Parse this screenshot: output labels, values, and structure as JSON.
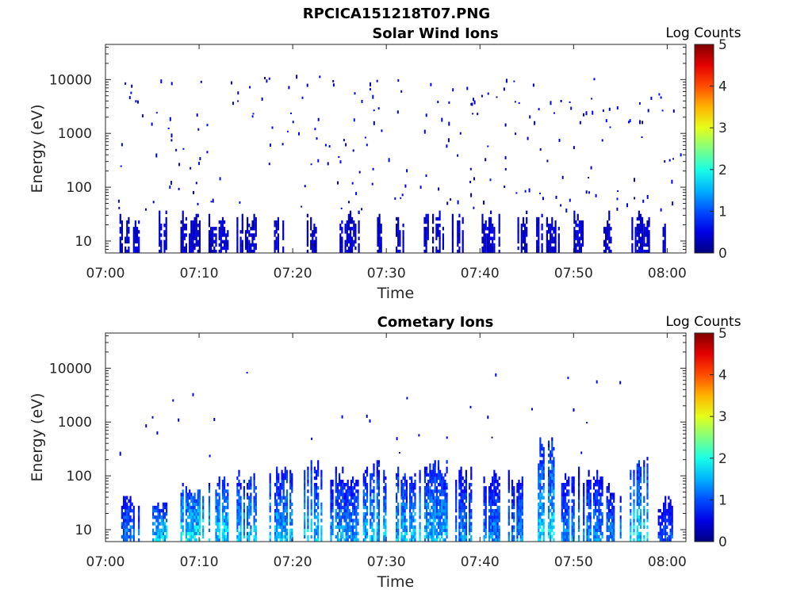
{
  "figure": {
    "title": "RPCICA151218T07.PNG"
  },
  "chart_data": [
    {
      "type": "heatmap",
      "title": "Solar Wind Ions",
      "xlabel": "Time",
      "ylabel": "Energy (eV)",
      "colorbar_label": "Log Counts",
      "colorbar_ticks": [
        "0",
        "1",
        "2",
        "3",
        "4",
        "5"
      ],
      "x_ticks": [
        "07:00",
        "07:10",
        "07:20",
        "07:30",
        "07:40",
        "07:50",
        "08:00"
      ],
      "y_ticks": [
        "10",
        "100",
        "1000",
        "10000"
      ],
      "y_scale": "log",
      "y_range": [
        6,
        45000
      ],
      "x_range": [
        "07:00",
        "08:02"
      ],
      "colormap": "jet",
      "colorbar_range": [
        0,
        5
      ],
      "dominant_level": "0 to 0.5 (dark blue), sparse counts",
      "low_energy_bursts": [
        {
          "start": "07:01.5",
          "end": "07:03.5",
          "top_eV": 35
        },
        {
          "start": "07:05.5",
          "end": "07:06.5",
          "top_eV": 35
        },
        {
          "start": "07:08",
          "end": "07:10",
          "top_eV": 35
        },
        {
          "start": "07:11",
          "end": "07:13",
          "top_eV": 35
        },
        {
          "start": "07:14",
          "end": "07:16",
          "top_eV": 35
        },
        {
          "start": "07:18",
          "end": "07:19",
          "top_eV": 35
        },
        {
          "start": "07:21.5",
          "end": "07:22.5",
          "top_eV": 35
        },
        {
          "start": "07:25",
          "end": "07:27",
          "top_eV": 35
        },
        {
          "start": "07:29",
          "end": "07:29.5",
          "top_eV": 35
        },
        {
          "start": "07:31",
          "end": "07:32",
          "top_eV": 35
        },
        {
          "start": "07:34",
          "end": "07:36",
          "top_eV": 35
        },
        {
          "start": "07:37",
          "end": "07:38.5",
          "top_eV": 35
        },
        {
          "start": "07:40",
          "end": "07:42",
          "top_eV": 35
        },
        {
          "start": "07:44",
          "end": "07:45",
          "top_eV": 35
        },
        {
          "start": "07:46",
          "end": "07:48.5",
          "top_eV": 35
        },
        {
          "start": "07:50",
          "end": "07:51",
          "top_eV": 35
        },
        {
          "start": "07:53",
          "end": "07:54",
          "top_eV": 35
        },
        {
          "start": "07:56",
          "end": "07:58",
          "top_eV": 35
        },
        {
          "start": "07:59.5",
          "end": "08:00.5",
          "top_eV": 35
        }
      ]
    },
    {
      "type": "heatmap",
      "title": "Cometary Ions",
      "xlabel": "Time",
      "ylabel": "Energy (eV)",
      "colorbar_label": "Log Counts",
      "colorbar_ticks": [
        "0",
        "1",
        "2",
        "3",
        "4",
        "5"
      ],
      "x_ticks": [
        "07:00",
        "07:10",
        "07:20",
        "07:30",
        "07:40",
        "07:50",
        "08:00"
      ],
      "y_ticks": [
        "10",
        "100",
        "1000",
        "10000"
      ],
      "y_scale": "log",
      "y_range": [
        6,
        45000
      ],
      "x_range": [
        "07:00",
        "08:02"
      ],
      "colormap": "jet",
      "colorbar_range": [
        0,
        5
      ],
      "dominant_level": "0.5 to 2 (blue to cyan) below 60 eV",
      "low_energy_bursts": [
        {
          "start": "07:01.5",
          "end": "07:03.5",
          "top_eV": 50,
          "peak_log": 1.5
        },
        {
          "start": "07:05",
          "end": "07:06.5",
          "top_eV": 40,
          "peak_log": 2
        },
        {
          "start": "07:08",
          "end": "07:10.5",
          "top_eV": 80,
          "peak_log": 2.2
        },
        {
          "start": "07:11",
          "end": "07:13",
          "top_eV": 100,
          "peak_log": 2
        },
        {
          "start": "07:14",
          "end": "07:16",
          "top_eV": 120,
          "peak_log": 1.8
        },
        {
          "start": "07:17.5",
          "end": "07:20",
          "top_eV": 150,
          "peak_log": 1.8
        },
        {
          "start": "07:21",
          "end": "07:23",
          "top_eV": 200,
          "peak_log": 1.8
        },
        {
          "start": "07:24",
          "end": "07:27",
          "top_eV": 150,
          "peak_log": 1.6
        },
        {
          "start": "07:27.5",
          "end": "07:30",
          "top_eV": 200,
          "peak_log": 1.8
        },
        {
          "start": "07:31",
          "end": "07:33",
          "top_eV": 150,
          "peak_log": 1.8
        },
        {
          "start": "07:33.5",
          "end": "07:36.5",
          "top_eV": 200,
          "peak_log": 1.8
        },
        {
          "start": "07:37",
          "end": "07:39",
          "top_eV": 150,
          "peak_log": 1.5
        },
        {
          "start": "07:40",
          "end": "07:42",
          "top_eV": 120,
          "peak_log": 1.5
        },
        {
          "start": "07:43",
          "end": "07:45",
          "top_eV": 120,
          "peak_log": 1.5
        },
        {
          "start": "07:46",
          "end": "07:48",
          "top_eV": 500,
          "peak_log": 2
        },
        {
          "start": "07:48.5",
          "end": "07:50.5",
          "top_eV": 150,
          "peak_log": 1.5
        },
        {
          "start": "07:51",
          "end": "07:53",
          "top_eV": 150,
          "peak_log": 1.5
        },
        {
          "start": "07:53.5",
          "end": "07:55",
          "top_eV": 100,
          "peak_log": 1.5
        },
        {
          "start": "07:56",
          "end": "07:58",
          "top_eV": 300,
          "peak_log": 2
        },
        {
          "start": "07:59",
          "end": "08:00.5",
          "top_eV": 40,
          "peak_log": 1.2
        }
      ]
    }
  ]
}
